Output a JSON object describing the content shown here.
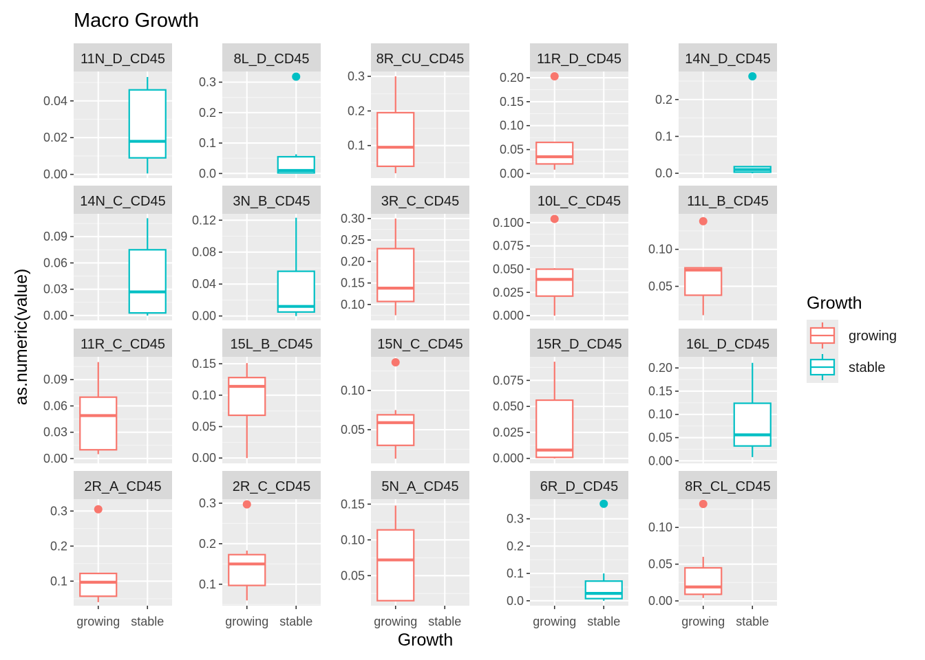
{
  "chart_data": {
    "type": "boxplot",
    "title": "Macro Growth",
    "xlabel": "Growth",
    "ylabel": "as.numeric(value)",
    "categories": [
      "growing",
      "stable"
    ],
    "legend": {
      "title": "Growth",
      "placement": "right",
      "items": [
        {
          "label": "growing",
          "color": "#F8766D"
        },
        {
          "label": "stable",
          "color": "#00BFC4"
        }
      ]
    },
    "panels": [
      {
        "name": "11N_D_CD45",
        "ylim": [
          -0.002,
          0.056
        ],
        "ticks": [
          0,
          0.02,
          0.04
        ],
        "tick_labels": [
          "0.00",
          "0.02",
          "0.04"
        ],
        "boxes": [
          {
            "group": "stable",
            "min": 0.0005,
            "q1": 0.009,
            "median": 0.018,
            "q3": 0.046,
            "max": 0.053,
            "outliers": []
          }
        ]
      },
      {
        "name": "8L_D_CD45",
        "ylim": [
          -0.015,
          0.335
        ],
        "ticks": [
          0,
          0.1,
          0.2,
          0.3
        ],
        "tick_labels": [
          "0.0",
          "0.1",
          "0.2",
          "0.3"
        ],
        "boxes": [
          {
            "group": "stable",
            "min": 0.0,
            "q1": 0.002,
            "median": 0.01,
            "q3": 0.055,
            "max": 0.063,
            "outliers": [
              0.318
            ]
          }
        ]
      },
      {
        "name": "8R_CU_CD45",
        "ylim": [
          0.006,
          0.314
        ],
        "ticks": [
          0.1,
          0.2,
          0.3
        ],
        "tick_labels": [
          "0.1",
          "0.2",
          "0.3"
        ],
        "boxes": [
          {
            "group": "growing",
            "min": 0.02,
            "q1": 0.04,
            "median": 0.095,
            "q3": 0.195,
            "max": 0.3,
            "outliers": []
          }
        ]
      },
      {
        "name": "11R_D_CD45",
        "ylim": [
          -0.0095,
          0.213
        ],
        "ticks": [
          0,
          0.05,
          0.1,
          0.15,
          0.2
        ],
        "tick_labels": [
          "0.00",
          "0.05",
          "0.10",
          "0.15",
          "0.20"
        ],
        "boxes": [
          {
            "group": "growing",
            "min": 0.008,
            "q1": 0.02,
            "median": 0.035,
            "q3": 0.065,
            "max": 0.066,
            "outliers": [
              0.203
            ]
          }
        ]
      },
      {
        "name": "14N_D_CD45",
        "ylim": [
          -0.013,
          0.276
        ],
        "ticks": [
          0,
          0.1,
          0.2
        ],
        "tick_labels": [
          "0.0",
          "0.1",
          "0.2"
        ],
        "boxes": [
          {
            "group": "stable",
            "min": 0.0,
            "q1": 0.003,
            "median": 0.01,
            "q3": 0.018,
            "max": 0.02,
            "outliers": [
              0.263
            ]
          }
        ]
      },
      {
        "name": "14N_C_CD45",
        "ylim": [
          -0.0055,
          0.116
        ],
        "ticks": [
          0,
          0.03,
          0.06,
          0.09
        ],
        "tick_labels": [
          "0.00",
          "0.03",
          "0.06",
          "0.09"
        ],
        "boxes": [
          {
            "group": "stable",
            "min": 0.0,
            "q1": 0.003,
            "median": 0.027,
            "q3": 0.075,
            "max": 0.111,
            "outliers": []
          }
        ]
      },
      {
        "name": "3N_B_CD45",
        "ylim": [
          -0.0055,
          0.128
        ],
        "ticks": [
          0,
          0.04,
          0.08,
          0.12
        ],
        "tick_labels": [
          "0.00",
          "0.04",
          "0.08",
          "0.12"
        ],
        "boxes": [
          {
            "group": "stable",
            "min": 0.0,
            "q1": 0.005,
            "median": 0.012,
            "q3": 0.056,
            "max": 0.123,
            "outliers": []
          }
        ]
      },
      {
        "name": "3R_C_CD45",
        "ylim": [
          0.063,
          0.311
        ],
        "ticks": [
          0.1,
          0.15,
          0.2,
          0.25,
          0.3
        ],
        "tick_labels": [
          "0.10",
          "0.15",
          "0.20",
          "0.25",
          "0.30"
        ],
        "boxes": [
          {
            "group": "growing",
            "min": 0.075,
            "q1": 0.107,
            "median": 0.138,
            "q3": 0.23,
            "max": 0.3,
            "outliers": []
          }
        ]
      },
      {
        "name": "10L_C_CD45",
        "ylim": [
          -0.0051,
          0.1095
        ],
        "ticks": [
          0,
          0.025,
          0.05,
          0.075,
          0.1
        ],
        "tick_labels": [
          "0.000",
          "0.025",
          "0.050",
          "0.075",
          "0.100"
        ],
        "boxes": [
          {
            "group": "growing",
            "min": 0.0,
            "q1": 0.021,
            "median": 0.039,
            "q3": 0.05,
            "max": 0.051,
            "outliers": [
              0.104
            ]
          }
        ]
      },
      {
        "name": "11L_B_CD45",
        "ylim": [
          0.004,
          0.148
        ],
        "ticks": [
          0.05,
          0.1
        ],
        "tick_labels": [
          "0.05",
          "0.10"
        ],
        "boxes": [
          {
            "group": "growing",
            "min": 0.011,
            "q1": 0.038,
            "median": 0.072,
            "q3": 0.075,
            "max": 0.076,
            "outliers": [
              0.138
            ]
          }
        ]
      },
      {
        "name": "11R_C_CD45",
        "ylim": [
          -0.0055,
          0.116
        ],
        "ticks": [
          0,
          0.03,
          0.06,
          0.09
        ],
        "tick_labels": [
          "0.00",
          "0.03",
          "0.06",
          "0.09"
        ],
        "boxes": [
          {
            "group": "growing",
            "min": 0.005,
            "q1": 0.01,
            "median": 0.049,
            "q3": 0.07,
            "max": 0.11,
            "outliers": []
          }
        ]
      },
      {
        "name": "15L_B_CD45",
        "ylim": [
          -0.0085,
          0.161
        ],
        "ticks": [
          0,
          0.05,
          0.1,
          0.15
        ],
        "tick_labels": [
          "0.00",
          "0.05",
          "0.10",
          "0.15"
        ],
        "boxes": [
          {
            "group": "growing",
            "min": 0.0,
            "q1": 0.068,
            "median": 0.114,
            "q3": 0.128,
            "max": 0.151,
            "outliers": []
          }
        ]
      },
      {
        "name": "15N_C_CD45",
        "ylim": [
          0.007,
          0.143
        ],
        "ticks": [
          0.05,
          0.1
        ],
        "tick_labels": [
          "0.05",
          "0.10"
        ],
        "boxes": [
          {
            "group": "growing",
            "min": 0.013,
            "q1": 0.03,
            "median": 0.059,
            "q3": 0.069,
            "max": 0.075,
            "outliers": [
              0.136
            ]
          }
        ]
      },
      {
        "name": "15R_D_CD45",
        "ylim": [
          -0.0048,
          0.0977
        ],
        "ticks": [
          0,
          0.025,
          0.05,
          0.075
        ],
        "tick_labels": [
          "0.000",
          "0.025",
          "0.050",
          "0.075"
        ],
        "boxes": [
          {
            "group": "growing",
            "min": 0.0,
            "q1": 0.001,
            "median": 0.008,
            "q3": 0.056,
            "max": 0.093,
            "outliers": []
          }
        ]
      },
      {
        "name": "16L_D_CD45",
        "ylim": [
          -0.0055,
          0.224
        ],
        "ticks": [
          0,
          0.05,
          0.1,
          0.15,
          0.2
        ],
        "tick_labels": [
          "0.00",
          "0.05",
          "0.10",
          "0.15",
          "0.20"
        ],
        "boxes": [
          {
            "group": "stable",
            "min": 0.008,
            "q1": 0.032,
            "median": 0.056,
            "q3": 0.124,
            "max": 0.211,
            "outliers": []
          }
        ]
      },
      {
        "name": "2R_A_CD45",
        "ylim": [
          0.03,
          0.334
        ],
        "ticks": [
          0.1,
          0.2,
          0.3
        ],
        "tick_labels": [
          "0.1",
          "0.2",
          "0.3"
        ],
        "boxes": [
          {
            "group": "growing",
            "min": 0.04,
            "q1": 0.057,
            "median": 0.097,
            "q3": 0.122,
            "max": 0.124,
            "outliers": [
              0.305
            ]
          }
        ]
      },
      {
        "name": "2R_C_CD45",
        "ylim": [
          0.047,
          0.31
        ],
        "ticks": [
          0.1,
          0.2,
          0.3
        ],
        "tick_labels": [
          "0.1",
          "0.2",
          "0.3"
        ],
        "boxes": [
          {
            "group": "growing",
            "min": 0.06,
            "q1": 0.097,
            "median": 0.15,
            "q3": 0.173,
            "max": 0.183,
            "outliers": [
              0.297
            ]
          }
        ]
      },
      {
        "name": "5N_A_CD45",
        "ylim": [
          0.008,
          0.157
        ],
        "ticks": [
          0.05,
          0.1,
          0.15
        ],
        "tick_labels": [
          "0.05",
          "0.10",
          "0.15"
        ],
        "boxes": [
          {
            "group": "growing",
            "min": 0.015,
            "q1": 0.015,
            "median": 0.072,
            "q3": 0.114,
            "max": 0.148,
            "outliers": []
          }
        ]
      },
      {
        "name": "6R_D_CD45",
        "ylim": [
          -0.018,
          0.372
        ],
        "ticks": [
          0,
          0.1,
          0.2,
          0.3
        ],
        "tick_labels": [
          "0.0",
          "0.1",
          "0.2",
          "0.3"
        ],
        "boxes": [
          {
            "group": "stable",
            "min": 0.0,
            "q1": 0.008,
            "median": 0.027,
            "q3": 0.072,
            "max": 0.1,
            "outliers": [
              0.355
            ]
          }
        ]
      },
      {
        "name": "8R_CL_CD45",
        "ylim": [
          -0.0065,
          0.1385
        ],
        "ticks": [
          0,
          0.05,
          0.1
        ],
        "tick_labels": [
          "0.00",
          "0.05",
          "0.10"
        ],
        "boxes": [
          {
            "group": "growing",
            "min": 0.004,
            "q1": 0.009,
            "median": 0.019,
            "q3": 0.045,
            "max": 0.06,
            "outliers": [
              0.132
            ]
          }
        ]
      }
    ]
  }
}
